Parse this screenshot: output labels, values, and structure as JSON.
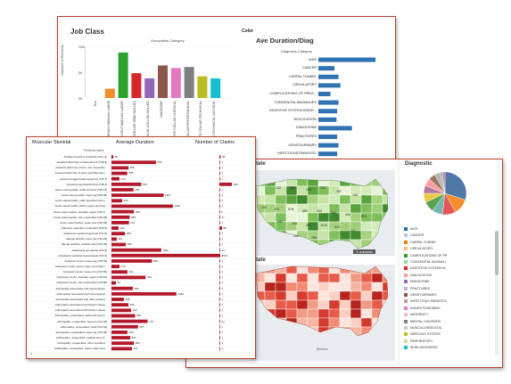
{
  "job_class": {
    "title": "Job Class",
    "header": "Occupation Category",
    "y_label": "Number of Records",
    "y_ticks": [
      "10K",
      "5K",
      "0K"
    ],
    "chart_data": {
      "type": "bar",
      "categories": [
        "Null",
        "BLUE COLLAR HEAVY MANUAL LABOR",
        "BLUE COLLAR LIGHT MANUAL LABOR",
        "BLUE COLLAR SEMI-SKILLED",
        "BLUE COLLAR SKILLED",
        "UNKNOWN",
        "WHITE COLLAR CLERICAL",
        "WHITE COLLAR PROFESSIONAL",
        "WHITE COLLAR TECHNICAL",
        "WHITE COLLAR TECHNICAL OUTSIDE OFFI..."
      ],
      "values": [
        0,
        1800,
        8800,
        4800,
        3800,
        6300,
        5800,
        6000,
        4200,
        3800
      ],
      "colors": [
        "#f28e2b",
        "#f28e2b",
        "#2ca02c",
        "#d62728",
        "#9467bd",
        "#8c564b",
        "#e377c2",
        "#7f7f7f",
        "#bcbd22",
        "#17becf"
      ],
      "ylim": [
        0,
        10000
      ],
      "ylabel": "Number of Records"
    }
  },
  "color_label": "Color",
  "duration_diag": {
    "title": "Ave Duration/Diag",
    "header": "Diagnosis Category",
    "chart_data": {
      "type": "bar",
      "categories": [
        "AIDS",
        "CANCER",
        "CARPAL TUNNEL",
        "CIRCULATORY",
        "COMPLICATIONS OF PREG...",
        "CONGENITAL ANOMALIES",
        "DIGESTIVE SYSTEM DISOR...",
        "DISLOCATION",
        "ENDOCRINE",
        "FRACTURES",
        "GENITOURINARY",
        "INFECTIOUS,PARASITIC",
        "INJURY,POISONING"
      ],
      "values": [
        85,
        24,
        30,
        33,
        18,
        30,
        28,
        27,
        50,
        28,
        30,
        28,
        26
      ]
    }
  },
  "state_title_1": "State",
  "state_title_2": "State",
  "map_unknown": "3 unknown",
  "map_number_labels": [
    "122",
    "190",
    "150",
    "202",
    "187",
    "144",
    "342",
    "476",
    "578",
    "300",
    "433",
    "304",
    "400",
    "602",
    "442",
    "205",
    "304",
    "1016",
    "412",
    "311",
    "200",
    "258"
  ],
  "map_footer": "Mexico",
  "diagnostic": {
    "title": "Diagnostic",
    "pie_colors": [
      "#4e79a7",
      "#f28e2b",
      "#e15759",
      "#76b7b2",
      "#59a14f",
      "#edc948",
      "#b07aa1",
      "#ff9da7",
      "#9c755f",
      "#bab0ac",
      "#86bcb6",
      "#d37295"
    ],
    "pie_values": [
      30,
      12,
      10,
      8,
      8,
      7,
      6,
      6,
      5,
      4,
      2,
      2
    ],
    "legend": [
      {
        "label": "AIDS",
        "color": "#1f6fb4"
      },
      {
        "label": "CANCER",
        "color": "#aec7e8"
      },
      {
        "label": "CARPAL TUNNEL",
        "color": "#ff7f0e"
      },
      {
        "label": "CIRCULATORY",
        "color": "#ffbb78"
      },
      {
        "label": "COMPLICATIONS OF PR",
        "color": "#2ca02c"
      },
      {
        "label": "CONGENITAL ANOMALI",
        "color": "#98df8a"
      },
      {
        "label": "DIGESTIVE SYSTEM DI",
        "color": "#d62728"
      },
      {
        "label": "DISLOCATION",
        "color": "#ff9896"
      },
      {
        "label": "ENDOCRINE",
        "color": "#9467bd"
      },
      {
        "label": "FRACTURES",
        "color": "#c5b0d5"
      },
      {
        "label": "GENITOURINARY",
        "color": "#8c564b"
      },
      {
        "label": "INFECTIOUS,PARASITIC",
        "color": "#c49c94"
      },
      {
        "label": "INJURY,POISONING",
        "color": "#e377c2"
      },
      {
        "label": "MATERNITY",
        "color": "#f7b6d2"
      },
      {
        "label": "MENTAL DISORDER",
        "color": "#7f7f7f"
      },
      {
        "label": "MUSCULOSKELETAL",
        "color": "#c7c7c7"
      },
      {
        "label": "NERVOUS SYSTEM",
        "color": "#bcbd22"
      },
      {
        "label": "RESPIRATORY",
        "color": "#dbdb8d"
      },
      {
        "label": "SKIN DISORDERS",
        "color": "#17becf"
      }
    ]
  },
  "musculoskeletal": {
    "col1_title": "Muscular Skeletal",
    "col1_sub": "Preferred Name",
    "col2_title": "Average Duration",
    "col3_title": "Number of Claims",
    "page_number": "5",
    "chart_data": {
      "type": "bar",
      "categories": [
        "Achilles bursitis or tendinitis [726.71]",
        "Acquired deformity of chest and rib [738.3]",
        "Acquired deformity of limb, site unspecifie...",
        "Acquired deformity of other specified site [...",
        "Acquired trigger/mallet deformity [735.7]",
        "Acquired spondylolisthesis [738.4]",
        "Acute osteomyelitis, ankle and foot [730.07]",
        "Acute osteomyelitis, lower leg [730.06]",
        "Acute osteomyelitis, other specified sites [...",
        "Acute osteomyelitis, pelvic region and thig...",
        "Acute osteomyelitis, shoulder region [730.0...",
        "Acute osteomyelitis, site unspecified [730.00]",
        "Acute osteomyelitis, upper arm [730.02]",
        "Adhesive capsulitis of shoulder [726.0]",
        "Adolescent postural kyphosis [737.0]",
        "Allergic arthritis, lower leg [716.26]",
        "Allergic arthritis, multiple sites [716.29]",
        "Ankylosing spondylitis [720.0]",
        "Ankylosing vertebral hyperostosis [721.6]",
        "Ankylosis of joint, lower leg [718.56]",
        "Ankylosis of joint, pelvic region and thigh [...",
        "Ankylosis of joint, upper arm [718.52]",
        "Ankylosis of joint, shoulder region [718.51]",
        "Ankylosis of joint, site unspecified [718.50]",
        "Arthropathy associated with helminthiasis...",
        "Arthropathy associated with neurological...",
        "Arthropathy associated with other endocri...",
        "Arthropathy associated with Reiter's disea...",
        "Arthropathy associated with Reiter's disea...",
        "Arthropathy, unspecified, ankle and foot [7...",
        "Arthropathy, unspecified, forearm [716.93]",
        "Arthropathy, unspecified, hand [716.94]",
        "Arthropathy, unspecified, lower leg [716.96]",
        "Arthropathy, unspecified, multiple sites [7...",
        "Arthropathy, unspecified, other specified...",
        "Arthropathy, unspecified, pelvic region and..."
      ],
      "durations": [
        38,
        949,
        365,
        336,
        170,
        636,
        470,
        1113,
        229,
        1310,
        480,
        389,
        374,
        152,
        288,
        111,
        305,
        1062,
        2321,
        865,
        173,
        341,
        728,
        94,
        456,
        1384,
        265,
        363,
        419,
        505,
        770,
        567,
        340,
        402,
        480,
        437
      ],
      "claims": [
        38,
        7,
        1,
        1,
        1,
        400,
        1,
        1,
        1,
        1,
        2,
        17,
        1,
        85,
        1,
        1,
        1,
        23,
        1,
        1,
        1,
        1,
        1,
        1,
        1,
        1,
        1,
        1,
        1,
        1,
        14,
        1,
        1,
        1,
        1,
        1
      ]
    }
  }
}
